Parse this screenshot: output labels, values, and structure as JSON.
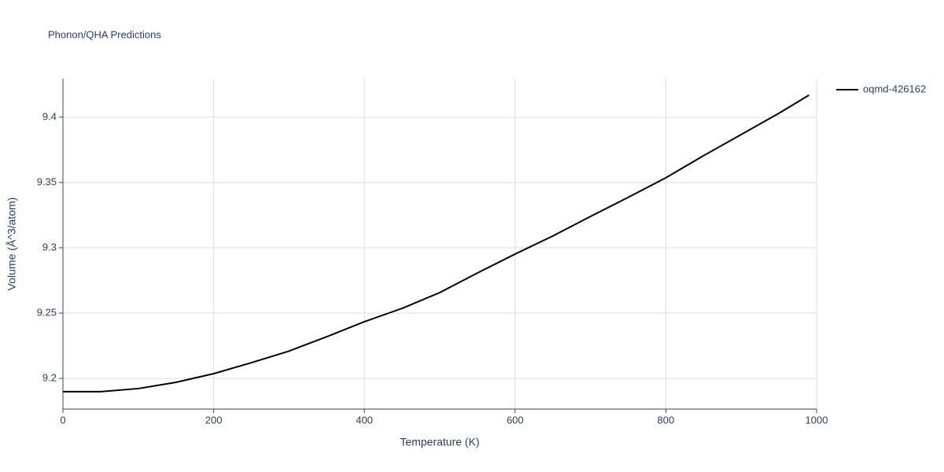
{
  "chart_data": {
    "type": "line",
    "title": "Phonon/QHA Predictions",
    "x_label": "Temperature (K)",
    "y_label": "Volume (Å^3/atom)",
    "x": [
      0,
      50,
      100,
      150,
      200,
      250,
      300,
      350,
      400,
      450,
      500,
      550,
      600,
      650,
      700,
      750,
      800,
      850,
      900,
      950,
      990
    ],
    "series": [
      {
        "name": "oqmd-426162",
        "color": "#000000",
        "values": [
          9.1898,
          9.1898,
          9.1922,
          9.197,
          9.2036,
          9.212,
          9.2209,
          9.2319,
          9.2434,
          9.2536,
          9.2657,
          9.2807,
          9.2952,
          9.309,
          9.324,
          9.3386,
          9.3536,
          9.3705,
          9.3867,
          9.403,
          9.4169
        ]
      }
    ],
    "xlim": [
      0,
      1000
    ],
    "xticks": [
      0,
      200,
      400,
      600,
      800,
      1000
    ],
    "ylim": [
      9.1765,
      9.4295
    ],
    "yticks": [
      9.2,
      9.25,
      9.3,
      9.35,
      9.4
    ],
    "grid": true,
    "legend": "right"
  }
}
